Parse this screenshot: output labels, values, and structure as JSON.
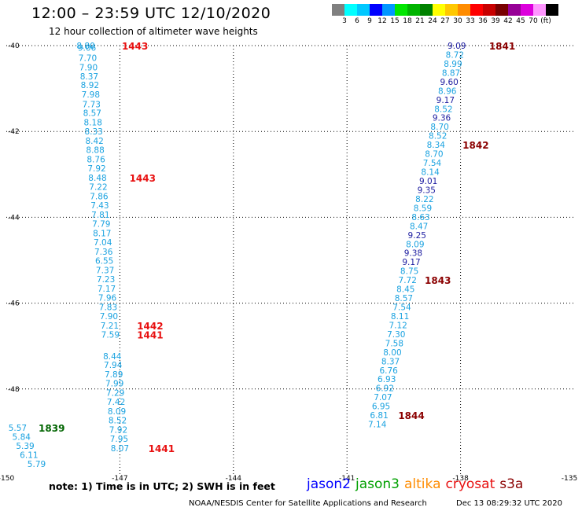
{
  "header": {
    "title": "12:00 – 23:59 UTC 12/10/2020",
    "subtitle": "12 hour collection of altimeter wave heights"
  },
  "color_scale": {
    "unit_label": "(ft)",
    "swatches": [
      "#808080",
      "#00ffff",
      "#00c8ff",
      "#0000ff",
      "#0096ff",
      "#00e600",
      "#00b400",
      "#008200",
      "#ffff00",
      "#ffc800",
      "#ff8c00",
      "#ff0000",
      "#c80000",
      "#780000",
      "#960096",
      "#dc00dc",
      "#ff96ff",
      "#000000"
    ],
    "labels": [
      "3",
      "6",
      "9",
      "12",
      "15",
      "18",
      "21",
      "24",
      "27",
      "30",
      "33",
      "36",
      "39",
      "42",
      "45",
      "70"
    ]
  },
  "axes": {
    "x_labels": [
      "-150",
      "-147",
      "-144",
      "-141",
      "-138",
      "-135"
    ],
    "y_labels": [
      "-40",
      "-42",
      "-44",
      "-46",
      "-48",
      "-50"
    ]
  },
  "colors": {
    "cyan": "#1aa2e0",
    "navy": "#1c1ca0",
    "time_red": "#e81010",
    "time_maroon": "#8b0000",
    "time_green": "#006400"
  },
  "chart_data": {
    "type": "scatter",
    "xlabel": "",
    "ylabel": "",
    "xlim": [
      -150,
      -135
    ],
    "ylim": [
      -50,
      -40
    ],
    "grid": true,
    "tracks": [
      {
        "satellite": "cryosat",
        "points": [
          {
            "lon": -147.9,
            "lat": -40.0,
            "label": "8.80",
            "color": "cyan"
          },
          {
            "lon": -147.87,
            "lat": -40.05,
            "label": "9.06",
            "color": "cyan"
          },
          {
            "lon": -147.85,
            "lat": -40.28,
            "label": "7.70",
            "color": "cyan"
          },
          {
            "lon": -147.83,
            "lat": -40.5,
            "label": "7.90",
            "color": "cyan"
          },
          {
            "lon": -147.81,
            "lat": -40.71,
            "label": "8.37",
            "color": "cyan"
          },
          {
            "lon": -147.79,
            "lat": -40.92,
            "label": "8.92",
            "color": "cyan"
          },
          {
            "lon": -147.77,
            "lat": -41.14,
            "label": "7.98",
            "color": "cyan"
          },
          {
            "lon": -147.75,
            "lat": -41.36,
            "label": "7.73",
            "color": "cyan"
          },
          {
            "lon": -147.73,
            "lat": -41.57,
            "label": "8.57",
            "color": "cyan"
          },
          {
            "lon": -147.71,
            "lat": -41.79,
            "label": "8.18",
            "color": "cyan"
          },
          {
            "lon": -147.69,
            "lat": -42.0,
            "label": "8.33",
            "color": "cyan"
          },
          {
            "lon": -147.67,
            "lat": -42.22,
            "label": "8.42",
            "color": "cyan"
          },
          {
            "lon": -147.65,
            "lat": -42.43,
            "label": "8.88",
            "color": "cyan"
          },
          {
            "lon": -147.63,
            "lat": -42.65,
            "label": "8.76",
            "color": "cyan"
          },
          {
            "lon": -147.61,
            "lat": -42.86,
            "label": "7.92",
            "color": "cyan"
          },
          {
            "lon": -147.59,
            "lat": -43.08,
            "label": "8.48",
            "color": "cyan"
          },
          {
            "lon": -147.57,
            "lat": -43.29,
            "label": "7.22",
            "color": "cyan"
          },
          {
            "lon": -147.55,
            "lat": -43.51,
            "label": "7.86",
            "color": "cyan"
          },
          {
            "lon": -147.53,
            "lat": -43.72,
            "label": "7.43",
            "color": "cyan"
          },
          {
            "lon": -147.51,
            "lat": -43.94,
            "label": "7.81",
            "color": "cyan"
          },
          {
            "lon": -147.49,
            "lat": -44.15,
            "label": "7.79",
            "color": "cyan"
          },
          {
            "lon": -147.47,
            "lat": -44.37,
            "label": "8.17",
            "color": "cyan"
          },
          {
            "lon": -147.45,
            "lat": -44.58,
            "label": "7.04",
            "color": "cyan"
          },
          {
            "lon": -147.43,
            "lat": -44.8,
            "label": "7.36",
            "color": "cyan"
          },
          {
            "lon": -147.41,
            "lat": -45.01,
            "label": "6.55",
            "color": "cyan"
          },
          {
            "lon": -147.39,
            "lat": -45.23,
            "label": "7.37",
            "color": "cyan"
          },
          {
            "lon": -147.37,
            "lat": -45.44,
            "label": "7.23",
            "color": "cyan"
          },
          {
            "lon": -147.35,
            "lat": -45.66,
            "label": "7.17",
            "color": "cyan"
          },
          {
            "lon": -147.33,
            "lat": -45.87,
            "label": "7.96",
            "color": "cyan"
          },
          {
            "lon": -147.31,
            "lat": -46.09,
            "label": "7.83",
            "color": "cyan"
          },
          {
            "lon": -147.29,
            "lat": -46.3,
            "label": "7.90",
            "color": "cyan"
          },
          {
            "lon": -147.27,
            "lat": -46.52,
            "label": "7.21",
            "color": "cyan"
          },
          {
            "lon": -147.25,
            "lat": -46.73,
            "label": "7.59",
            "color": "cyan"
          },
          {
            "lon": -147.2,
            "lat": -47.23,
            "label": "8.44",
            "color": "cyan"
          },
          {
            "lon": -147.18,
            "lat": -47.44,
            "label": "7.94",
            "color": "cyan"
          },
          {
            "lon": -147.16,
            "lat": -47.66,
            "label": "7.89",
            "color": "cyan"
          },
          {
            "lon": -147.14,
            "lat": -47.87,
            "label": "7.99",
            "color": "cyan"
          },
          {
            "lon": -147.12,
            "lat": -48.09,
            "label": "7.29",
            "color": "cyan"
          },
          {
            "lon": -147.1,
            "lat": -48.3,
            "label": "7.42",
            "color": "cyan"
          },
          {
            "lon": -147.08,
            "lat": -48.52,
            "label": "8.09",
            "color": "cyan"
          },
          {
            "lon": -147.06,
            "lat": -48.73,
            "label": "8.52",
            "color": "cyan"
          },
          {
            "lon": -147.04,
            "lat": -48.95,
            "label": "7.92",
            "color": "cyan"
          },
          {
            "lon": -147.02,
            "lat": -49.16,
            "label": "7.95",
            "color": "cyan"
          },
          {
            "lon": -147.0,
            "lat": -49.38,
            "label": "8.07",
            "color": "cyan"
          }
        ],
        "times": [
          {
            "lon": -146.6,
            "lat": -40.0,
            "label": "1443",
            "color": "time_red"
          },
          {
            "lon": -146.4,
            "lat": -43.08,
            "label": "1443",
            "color": "time_red"
          },
          {
            "lon": -146.2,
            "lat": -46.52,
            "label": "1442",
            "color": "time_red"
          },
          {
            "lon": -146.2,
            "lat": -46.73,
            "label": "1441",
            "color": "time_red"
          },
          {
            "lon": -145.9,
            "lat": -49.38,
            "label": "1441",
            "color": "time_red"
          }
        ]
      },
      {
        "satellite": "jason3",
        "points": [
          {
            "lon": -149.7,
            "lat": -48.9,
            "label": "5.57",
            "color": "cyan"
          },
          {
            "lon": -149.6,
            "lat": -49.11,
            "label": "5.84",
            "color": "cyan"
          },
          {
            "lon": -149.5,
            "lat": -49.32,
            "label": "5.39",
            "color": "cyan"
          },
          {
            "lon": -149.4,
            "lat": -49.53,
            "label": "6.11",
            "color": "cyan"
          },
          {
            "lon": -149.2,
            "lat": -49.74,
            "label": "5.79",
            "color": "cyan"
          }
        ],
        "times": [
          {
            "lon": -148.8,
            "lat": -48.9,
            "label": "1839",
            "color": "time_green"
          }
        ]
      },
      {
        "satellite": "s3a",
        "points": [
          {
            "lon": -138.1,
            "lat": -40.0,
            "label": "9.09",
            "color": "navy"
          },
          {
            "lon": -138.15,
            "lat": -40.21,
            "label": "8.72",
            "color": "cyan"
          },
          {
            "lon": -138.2,
            "lat": -40.42,
            "label": "8.99",
            "color": "cyan"
          },
          {
            "lon": -138.25,
            "lat": -40.63,
            "label": "8.87",
            "color": "cyan"
          },
          {
            "lon": -138.3,
            "lat": -40.84,
            "label": "9.60",
            "color": "navy"
          },
          {
            "lon": -138.35,
            "lat": -41.05,
            "label": "8.96",
            "color": "cyan"
          },
          {
            "lon": -138.4,
            "lat": -41.26,
            "label": "9.17",
            "color": "navy"
          },
          {
            "lon": -138.45,
            "lat": -41.47,
            "label": "8.52",
            "color": "cyan"
          },
          {
            "lon": -138.5,
            "lat": -41.68,
            "label": "9.36",
            "color": "navy"
          },
          {
            "lon": -138.55,
            "lat": -41.89,
            "label": "8.70",
            "color": "cyan"
          },
          {
            "lon": -138.6,
            "lat": -42.1,
            "label": "8.52",
            "color": "cyan"
          },
          {
            "lon": -138.65,
            "lat": -42.31,
            "label": "8.34",
            "color": "cyan"
          },
          {
            "lon": -138.7,
            "lat": -42.52,
            "label": "8.70",
            "color": "cyan"
          },
          {
            "lon": -138.75,
            "lat": -42.73,
            "label": "7.54",
            "color": "cyan"
          },
          {
            "lon": -138.8,
            "lat": -42.94,
            "label": "8.14",
            "color": "cyan"
          },
          {
            "lon": -138.85,
            "lat": -43.15,
            "label": "9.01",
            "color": "navy"
          },
          {
            "lon": -138.9,
            "lat": -43.36,
            "label": "9.35",
            "color": "navy"
          },
          {
            "lon": -138.95,
            "lat": -43.57,
            "label": "8.22",
            "color": "cyan"
          },
          {
            "lon": -139.0,
            "lat": -43.78,
            "label": "8.59",
            "color": "cyan"
          },
          {
            "lon": -139.05,
            "lat": -43.99,
            "label": "8.63",
            "color": "cyan"
          },
          {
            "lon": -139.1,
            "lat": -44.2,
            "label": "8.47",
            "color": "cyan"
          },
          {
            "lon": -139.15,
            "lat": -44.41,
            "label": "9.25",
            "color": "navy"
          },
          {
            "lon": -139.2,
            "lat": -44.62,
            "label": "8.09",
            "color": "cyan"
          },
          {
            "lon": -139.25,
            "lat": -44.83,
            "label": "9.38",
            "color": "navy"
          },
          {
            "lon": -139.3,
            "lat": -45.04,
            "label": "9.17",
            "color": "navy"
          },
          {
            "lon": -139.35,
            "lat": -45.25,
            "label": "8.75",
            "color": "cyan"
          },
          {
            "lon": -139.4,
            "lat": -45.46,
            "label": "7.72",
            "color": "cyan"
          },
          {
            "lon": -139.45,
            "lat": -45.67,
            "label": "8.45",
            "color": "cyan"
          },
          {
            "lon": -139.5,
            "lat": -45.88,
            "label": "8.57",
            "color": "cyan"
          },
          {
            "lon": -139.55,
            "lat": -46.09,
            "label": "7.54",
            "color": "cyan"
          },
          {
            "lon": -139.6,
            "lat": -46.3,
            "label": "8.11",
            "color": "cyan"
          },
          {
            "lon": -139.65,
            "lat": -46.51,
            "label": "7.12",
            "color": "cyan"
          },
          {
            "lon": -139.7,
            "lat": -46.72,
            "label": "7.30",
            "color": "cyan"
          },
          {
            "lon": -139.75,
            "lat": -46.93,
            "label": "7.58",
            "color": "cyan"
          },
          {
            "lon": -139.8,
            "lat": -47.14,
            "label": "8.00",
            "color": "cyan"
          },
          {
            "lon": -139.85,
            "lat": -47.35,
            "label": "8.37",
            "color": "cyan"
          },
          {
            "lon": -139.9,
            "lat": -47.56,
            "label": "6.76",
            "color": "cyan"
          },
          {
            "lon": -139.95,
            "lat": -47.77,
            "label": "6.93",
            "color": "cyan"
          },
          {
            "lon": -140.0,
            "lat": -47.98,
            "label": "6.92",
            "color": "cyan"
          },
          {
            "lon": -140.05,
            "lat": -48.19,
            "label": "7.07",
            "color": "cyan"
          },
          {
            "lon": -140.1,
            "lat": -48.4,
            "label": "6.95",
            "color": "cyan"
          },
          {
            "lon": -140.15,
            "lat": -48.61,
            "label": "6.81",
            "color": "cyan"
          },
          {
            "lon": -140.2,
            "lat": -48.82,
            "label": "7.14",
            "color": "cyan"
          }
        ],
        "times": [
          {
            "lon": -136.9,
            "lat": -40.0,
            "label": "1841",
            "color": "time_maroon"
          },
          {
            "lon": -137.6,
            "lat": -42.31,
            "label": "1842",
            "color": "time_maroon"
          },
          {
            "lon": -138.6,
            "lat": -45.46,
            "label": "1843",
            "color": "time_maroon"
          },
          {
            "lon": -139.3,
            "lat": -48.61,
            "label": "1844",
            "color": "time_maroon"
          }
        ]
      }
    ]
  },
  "footer": {
    "note": "note:  1) Time is in UTC; 2) SWH is in feet",
    "satellites": [
      {
        "name": "jason2",
        "color": "#0000ff"
      },
      {
        "name": "jason3",
        "color": "#00a000"
      },
      {
        "name": "altika",
        "color": "#ff8c00"
      },
      {
        "name": "cryosat",
        "color": "#e81010"
      },
      {
        "name": "s3a",
        "color": "#8b0000"
      }
    ],
    "credit": "NOAA/NESDIS Center for Satellite Applications and Research",
    "timestamp": "Dec 13 08:29:32 UTC 2020"
  }
}
